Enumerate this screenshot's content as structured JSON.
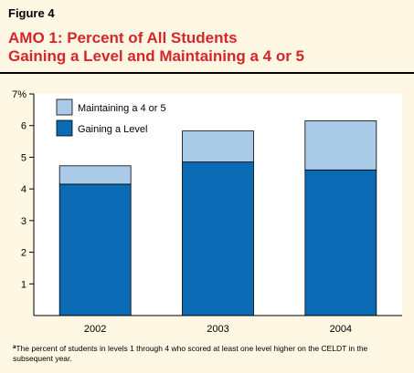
{
  "figure_label": "Figure 4",
  "title_lines": [
    "AMO 1: Percent of All Students",
    "Gaining a Level and Maintaining a 4 or 5"
  ],
  "footnote": {
    "marker": "a",
    "text": "The percent of students in levels 1 through 4 who scored at least one level higher on the CELDT in the subsequent year."
  },
  "colors": {
    "background": "#fdf7e3",
    "title": "#d6262a",
    "gaining": "#0a6ab4",
    "maintaining": "#a9cbe8"
  },
  "chart_data": {
    "type": "bar",
    "stacked": true,
    "categories": [
      "2002",
      "2003",
      "2004"
    ],
    "series": [
      {
        "name": "Gaining a Level",
        "values": [
          4.15,
          4.85,
          4.6
        ]
      },
      {
        "name": "Maintaining a 4 or 5",
        "values": [
          0.58,
          0.98,
          1.55
        ]
      }
    ],
    "y_ticks": [
      "1",
      "2",
      "3",
      "4",
      "5",
      "6",
      "7%"
    ],
    "ylim": [
      0,
      7
    ],
    "legend_position": "top-left",
    "grid": false
  }
}
